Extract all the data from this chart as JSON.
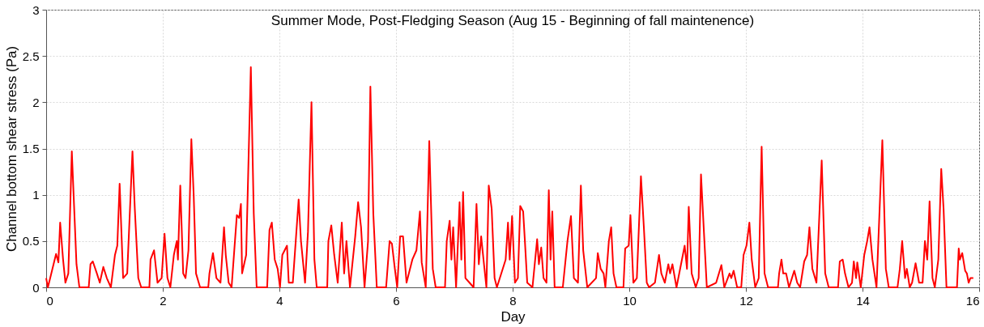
{
  "chart_data": {
    "type": "line",
    "title": "Summer Mode, Post-Fledging Season (Aug 15 - Beginning of fall maintenence)",
    "xlabel": "Day",
    "ylabel": "Channel bottom shear stress (Pa)",
    "x": [
      0,
      0.03,
      0.17,
      0.21,
      0.24,
      0.29,
      0.33,
      0.38,
      0.44,
      0.52,
      0.57,
      0.73,
      0.76,
      0.8,
      0.87,
      0.92,
      0.98,
      1.04,
      1.11,
      1.18,
      1.22,
      1.26,
      1.32,
      1.39,
      1.48,
      1.52,
      1.58,
      1.63,
      1.77,
      1.79,
      1.85,
      1.91,
      1.98,
      2.03,
      2.08,
      2.13,
      2.19,
      2.24,
      2.26,
      2.3,
      2.35,
      2.39,
      2.44,
      2.49,
      2.53,
      2.57,
      2.64,
      2.78,
      2.8,
      2.86,
      2.92,
      2.99,
      3.05,
      3.08,
      3.13,
      3.18,
      3.27,
      3.31,
      3.34,
      3.36,
      3.43,
      3.51,
      3.56,
      3.61,
      3.79,
      3.83,
      3.87,
      3.92,
      3.97,
      4.01,
      4.05,
      4.09,
      4.13,
      4.16,
      4.23,
      4.28,
      4.33,
      4.37,
      4.44,
      4.49,
      4.55,
      4.6,
      4.64,
      4.82,
      4.84,
      4.89,
      4.94,
      5.0,
      5.07,
      5.11,
      5.15,
      5.21,
      5.3,
      5.35,
      5.4,
      5.46,
      5.52,
      5.56,
      5.61,
      5.67,
      5.83,
      5.89,
      5.93,
      5.98,
      6.02,
      6.07,
      6.12,
      6.18,
      6.28,
      6.35,
      6.41,
      6.44,
      6.51,
      6.57,
      6.63,
      6.68,
      6.84,
      6.87,
      6.92,
      6.95,
      6.98,
      7.03,
      7.09,
      7.12,
      7.15,
      7.19,
      7.26,
      7.33,
      7.38,
      7.42,
      7.46,
      7.5,
      7.55,
      7.59,
      7.64,
      7.69,
      7.73,
      7.88,
      7.92,
      7.95,
      7.99,
      8.04,
      8.09,
      8.13,
      8.18,
      8.21,
      8.25,
      8.34,
      8.42,
      8.45,
      8.49,
      8.53,
      8.58,
      8.62,
      8.65,
      8.68,
      8.72,
      8.86,
      8.94,
      9.0,
      9.05,
      9.12,
      9.17,
      9.21,
      9.28,
      9.43,
      9.46,
      9.51,
      9.56,
      9.59,
      9.65,
      9.69,
      9.73,
      9.78,
      9.9,
      9.93,
      9.99,
      10.02,
      10.07,
      10.13,
      10.2,
      10.25,
      10.3,
      10.34,
      10.44,
      10.51,
      10.55,
      10.61,
      10.67,
      10.7,
      10.74,
      10.81,
      10.95,
      10.99,
      11.02,
      11.07,
      11.14,
      11.19,
      11.23,
      11.28,
      11.33,
      11.49,
      11.58,
      11.63,
      11.72,
      11.75,
      11.79,
      11.85,
      11.92,
      11.96,
      12.01,
      12.06,
      12.1,
      12.16,
      12.22,
      12.27,
      12.32,
      12.38,
      12.55,
      12.57,
      12.61,
      12.64,
      12.69,
      12.74,
      12.83,
      12.88,
      12.93,
      13.0,
      13.05,
      13.09,
      13.14,
      13.21,
      13.3,
      13.36,
      13.42,
      13.58,
      13.61,
      13.66,
      13.7,
      13.76,
      13.82,
      13.85,
      13.89,
      13.91,
      13.97,
      14.03,
      14.08,
      14.12,
      14.17,
      14.24,
      14.34,
      14.4,
      14.45,
      14.6,
      14.64,
      14.68,
      14.73,
      14.76,
      14.81,
      14.85,
      14.91,
      14.97,
      15.03,
      15.07,
      15.11,
      15.15,
      15.2,
      15.24,
      15.3,
      15.35,
      15.39,
      15.44,
      15.62,
      15.65,
      15.67,
      15.71,
      15.76,
      15.79,
      15.82,
      15.85,
      15.9
    ],
    "series": [
      {
        "color": "#ff0000",
        "values": [
          0.1,
          0,
          0.36,
          0.27,
          0.7,
          0.3,
          0.05,
          0.15,
          1.47,
          0.25,
          0,
          0,
          0.25,
          0.28,
          0.15,
          0.05,
          0.22,
          0.1,
          0,
          0.35,
          0.45,
          1.12,
          0.1,
          0.15,
          1.47,
          0.85,
          0.1,
          0,
          0,
          0.3,
          0.4,
          0.05,
          0.1,
          0.58,
          0.1,
          0,
          0.35,
          0.5,
          0.3,
          1.1,
          0.15,
          0.1,
          0.4,
          1.6,
          1.0,
          0.15,
          0,
          0,
          0.15,
          0.37,
          0.1,
          0.05,
          0.65,
          0.35,
          0.05,
          0,
          0.78,
          0.75,
          0.9,
          0.15,
          0.35,
          2.38,
          0.8,
          0,
          0,
          0.62,
          0.7,
          0.3,
          0.2,
          0,
          0.35,
          0.4,
          0.45,
          0.05,
          0.05,
          0.5,
          0.95,
          0.5,
          0.05,
          0.6,
          2.0,
          0.3,
          0,
          0,
          0.5,
          0.67,
          0.35,
          0.05,
          0.7,
          0.15,
          0.5,
          0,
          0.55,
          0.92,
          0.65,
          0,
          0.5,
          2.17,
          0.8,
          0,
          0,
          0.5,
          0.47,
          0.2,
          0,
          0.55,
          0.55,
          0.05,
          0.3,
          0.4,
          0.82,
          0.27,
          0,
          1.58,
          0.2,
          0,
          0,
          0.5,
          0.72,
          0.3,
          0.65,
          0,
          0.92,
          0.3,
          1.03,
          0.1,
          0.05,
          0,
          0.9,
          0.25,
          0.55,
          0.3,
          0,
          1.1,
          0.85,
          0.1,
          0,
          0.3,
          0.7,
          0.3,
          0.77,
          0.05,
          0.1,
          0.88,
          0.82,
          0.5,
          0.05,
          0,
          0.52,
          0.25,
          0.43,
          0.1,
          0.05,
          1.05,
          0.3,
          0.82,
          0,
          0,
          0.5,
          0.77,
          0.1,
          0.05,
          1.1,
          0.4,
          0,
          0.1,
          0.37,
          0.2,
          0.15,
          0,
          0.5,
          0.65,
          0.15,
          0,
          0,
          0.42,
          0.45,
          0.78,
          0.05,
          0.1,
          1.2,
          0.65,
          0.05,
          0,
          0.05,
          0.35,
          0.15,
          0.05,
          0.25,
          0.15,
          0.25,
          0,
          0.45,
          0.2,
          0.87,
          0.15,
          0,
          0.1,
          1.22,
          0.6,
          0,
          0.05,
          0.24,
          0,
          0.15,
          0.1,
          0.18,
          0,
          0,
          0.35,
          0.45,
          0.7,
          0.3,
          0,
          0.1,
          1.52,
          0.15,
          0,
          0,
          0.15,
          0.3,
          0.15,
          0.15,
          0,
          0.18,
          0.05,
          0,
          0.28,
          0.35,
          0.65,
          0.2,
          0.05,
          1.37,
          0.15,
          0,
          0,
          0.28,
          0.3,
          0.15,
          0,
          0.05,
          0.28,
          0.1,
          0.27,
          0,
          0.35,
          0.5,
          0.65,
          0.3,
          0,
          1.59,
          0.2,
          0,
          0,
          0.2,
          0.5,
          0.1,
          0.2,
          0,
          0.05,
          0.26,
          0.05,
          0.05,
          0.5,
          0.3,
          0.93,
          0.1,
          0,
          0.3,
          1.28,
          0.85,
          0,
          0,
          0.42,
          0.3,
          0.37,
          0.18,
          0.15,
          0.05,
          0.1,
          0.1
        ]
      }
    ],
    "xlim": [
      0,
      16
    ],
    "xticks": [
      0,
      2,
      4,
      6,
      8,
      10,
      12,
      14,
      16
    ],
    "ylim": [
      0,
      3
    ],
    "yticks": [
      0,
      0.5,
      1,
      1.5,
      2,
      2.5,
      3
    ],
    "grid": true,
    "legend": false,
    "marker": "none",
    "line_style": "solid"
  }
}
